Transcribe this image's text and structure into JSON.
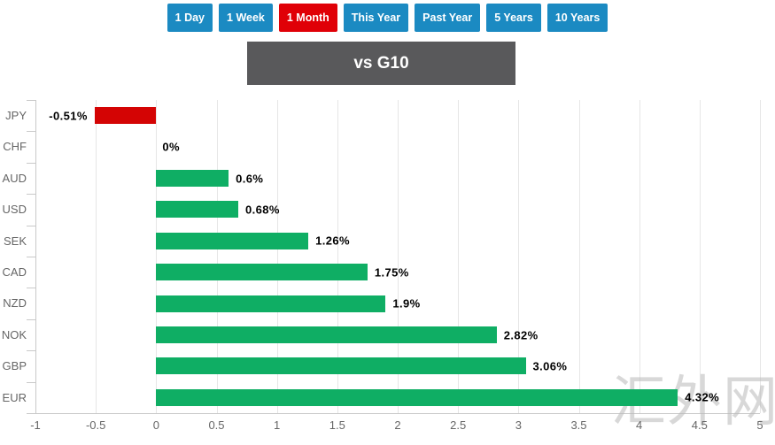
{
  "header": {
    "title": "vs G10"
  },
  "toolbar": {
    "buttons": [
      {
        "label": "1 Day",
        "active": false
      },
      {
        "label": "1 Week",
        "active": false
      },
      {
        "label": "1 Month",
        "active": true
      },
      {
        "label": "This Year",
        "active": false
      },
      {
        "label": "Past Year",
        "active": false
      },
      {
        "label": "5 Years",
        "active": false
      },
      {
        "label": "10 Years",
        "active": false
      }
    ]
  },
  "watermark": {
    "text": "汇外网"
  },
  "colors": {
    "button_blue": "#1b8ac2",
    "button_active_red": "#e00007",
    "banner_gray": "#59595b",
    "bar_positive_green": "#0fae64",
    "bar_negative_red": "#d40404",
    "gridline": "#e6e6e6",
    "axis": "#c9c9c9",
    "axis_text": "#666666"
  },
  "chart_data": {
    "type": "bar",
    "orientation": "horizontal",
    "title": "vs G10",
    "xlabel": "",
    "ylabel": "",
    "categories": [
      "JPY",
      "CHF",
      "AUD",
      "USD",
      "SEK",
      "CAD",
      "NZD",
      "NOK",
      "GBP",
      "EUR"
    ],
    "values": [
      -0.51,
      0,
      0.6,
      0.68,
      1.26,
      1.75,
      1.9,
      2.82,
      3.06,
      4.32
    ],
    "value_labels": [
      "-0.51%",
      "0%",
      "0.6%",
      "0.68%",
      "1.26%",
      "1.75%",
      "1.9%",
      "2.82%",
      "3.06%",
      "4.32%"
    ],
    "xlim": [
      -1,
      5
    ],
    "xticks": [
      -1,
      -0.5,
      0,
      0.5,
      1,
      1.5,
      2,
      2.5,
      3,
      3.5,
      4,
      4.5,
      5
    ],
    "xtick_labels": [
      "-1",
      "-0.5",
      "0",
      "0.5",
      "1",
      "1.5",
      "2",
      "2.5",
      "3",
      "3.5",
      "4",
      "4.5",
      "5"
    ],
    "grid": true,
    "legend": "none",
    "positive_color": "#0fae64",
    "negative_color": "#d40404"
  }
}
